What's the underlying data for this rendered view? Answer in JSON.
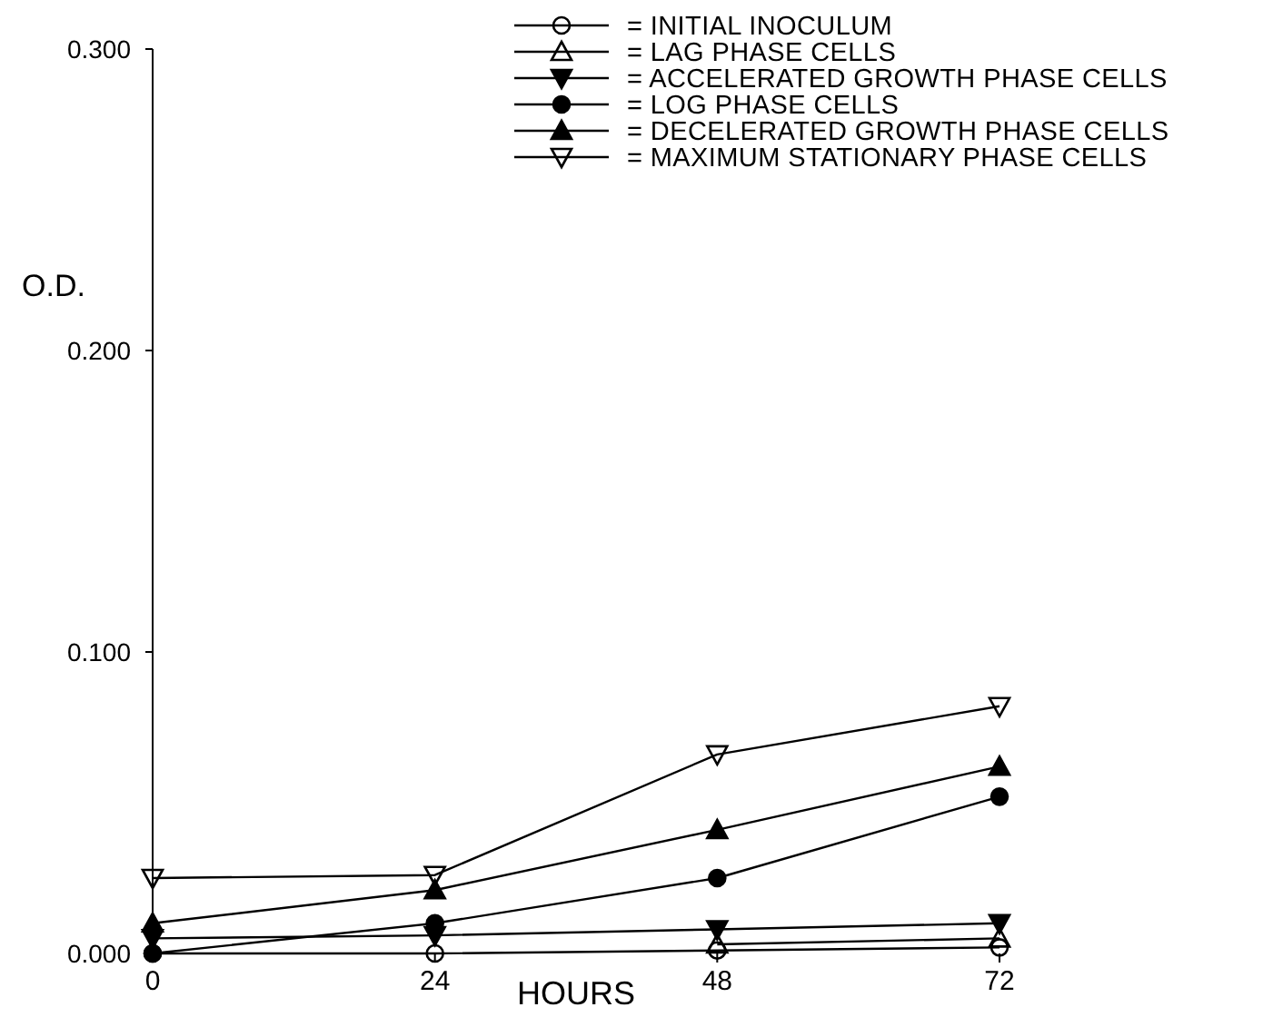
{
  "chart_data": {
    "type": "line",
    "ylabel": "O.D.",
    "xlabel": "HOURS",
    "x": [
      0,
      24,
      48,
      72
    ],
    "xlim": [
      0,
      72
    ],
    "xticks": [
      0,
      24,
      48,
      72
    ],
    "ylim": [
      0,
      0.3
    ],
    "yticks": [
      {
        "value": 0,
        "label": "0.000"
      },
      {
        "value": 0.1,
        "label": "0.100"
      },
      {
        "value": 0.2,
        "label": "0.200"
      },
      {
        "value": 0.3,
        "label": "0.300"
      }
    ],
    "grid": false,
    "legend": "top right",
    "line_style": "solid",
    "series": [
      {
        "name": "= INITIAL INOCULUM",
        "color": "#000000",
        "marker": "circle-open",
        "values": [
          0.0,
          0.0,
          0.001,
          0.002
        ]
      },
      {
        "name": "= LAG PHASE CELLS",
        "color": "#000000",
        "marker": "triangle-open",
        "values": [
          null,
          null,
          0.003,
          0.005
        ]
      },
      {
        "name": "= ACCELERATED GROWTH PHASE CELLS",
        "color": "#000000",
        "marker": "triangle-down",
        "values": [
          0.005,
          0.006,
          0.008,
          0.01
        ]
      },
      {
        "name": "= LOG PHASE CELLS",
        "color": "#000000",
        "marker": "circle",
        "values": [
          0.0,
          0.01,
          0.025,
          0.052
        ]
      },
      {
        "name": "= DECELERATED GROWTH PHASE CELLS",
        "color": "#000000",
        "marker": "triangle",
        "values": [
          0.01,
          0.021,
          0.041,
          0.062
        ]
      },
      {
        "name": "= MAXIMUM STATIONARY PHASE CELLS",
        "color": "#000000",
        "marker": "triangle-down-open",
        "values": [
          0.025,
          0.026,
          0.066,
          0.082
        ]
      }
    ]
  }
}
